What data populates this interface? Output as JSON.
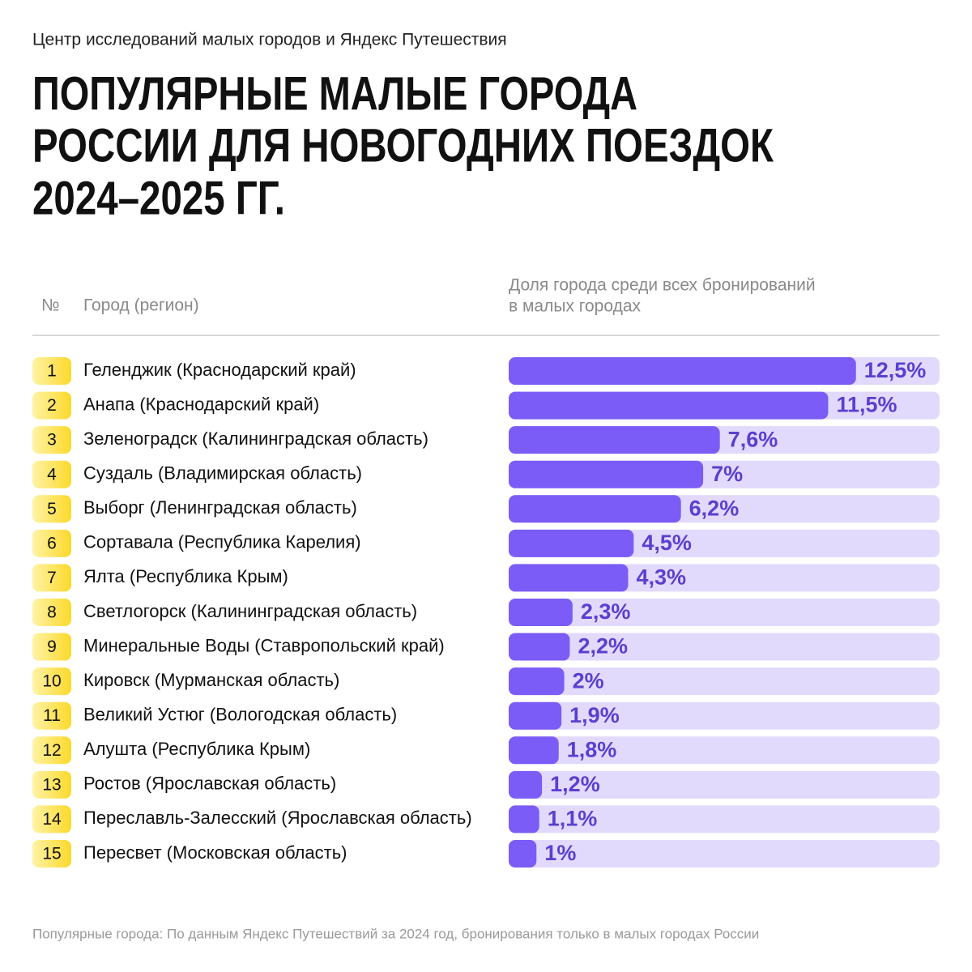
{
  "chart_data": {
    "type": "bar",
    "source": "Центр исследований малых городов и Яндекс Путешествия",
    "title": [
      "ПОПУЛЯРНЫЕ МАЛЫЕ ГОРОДА",
      "РОССИИ ДЛЯ НОВОГОДНИХ ПОЕЗДОК",
      "2024–2025 ГГ."
    ],
    "columns": {
      "rank": "№",
      "city": "Город (регион)",
      "share": [
        "Доля города среди всех бронирований",
        "в малых городах"
      ]
    },
    "ranks": [
      1,
      2,
      3,
      4,
      5,
      6,
      7,
      8,
      9,
      10,
      11,
      12,
      13,
      14,
      15
    ],
    "categories": [
      "Геленджик (Краснодарский край)",
      "Анапа (Краснодарский край)",
      "Зеленоградск (Калининградская область)",
      "Суздаль (Владимирская область)",
      "Выборг (Ленинградская область)",
      "Сортавала (Республика Карелия)",
      "Ялта (Республика Крым)",
      "Светлогорск (Калининградская область)",
      "Минеральные Воды (Ставропольский край)",
      "Кировск (Мурманская область)",
      "Великий Устюг (Вологодская область)",
      "Алушта (Республика Крым)",
      "Ростов (Ярославская область)",
      "Переславль-Залесский (Ярославская область)",
      "Пересвет (Московская область)"
    ],
    "values": [
      12.5,
      11.5,
      7.6,
      7,
      6.2,
      4.5,
      4.3,
      2.3,
      2.2,
      2,
      1.9,
      1.8,
      1.2,
      1.1,
      1
    ],
    "value_labels": [
      "12,5%",
      "11,5%",
      "7,6%",
      "7%",
      "6,2%",
      "4,5%",
      "4,3%",
      "2,3%",
      "2,2%",
      "2%",
      "1,9%",
      "1,8%",
      "1,2%",
      "1,1%",
      "1%"
    ],
    "color": "#7b5cf7",
    "track_color": "#e1dafc",
    "footnote": "Популярные города: По данным Яндекс Путешествий за 2024 год, бронирования только в малых городах России"
  }
}
